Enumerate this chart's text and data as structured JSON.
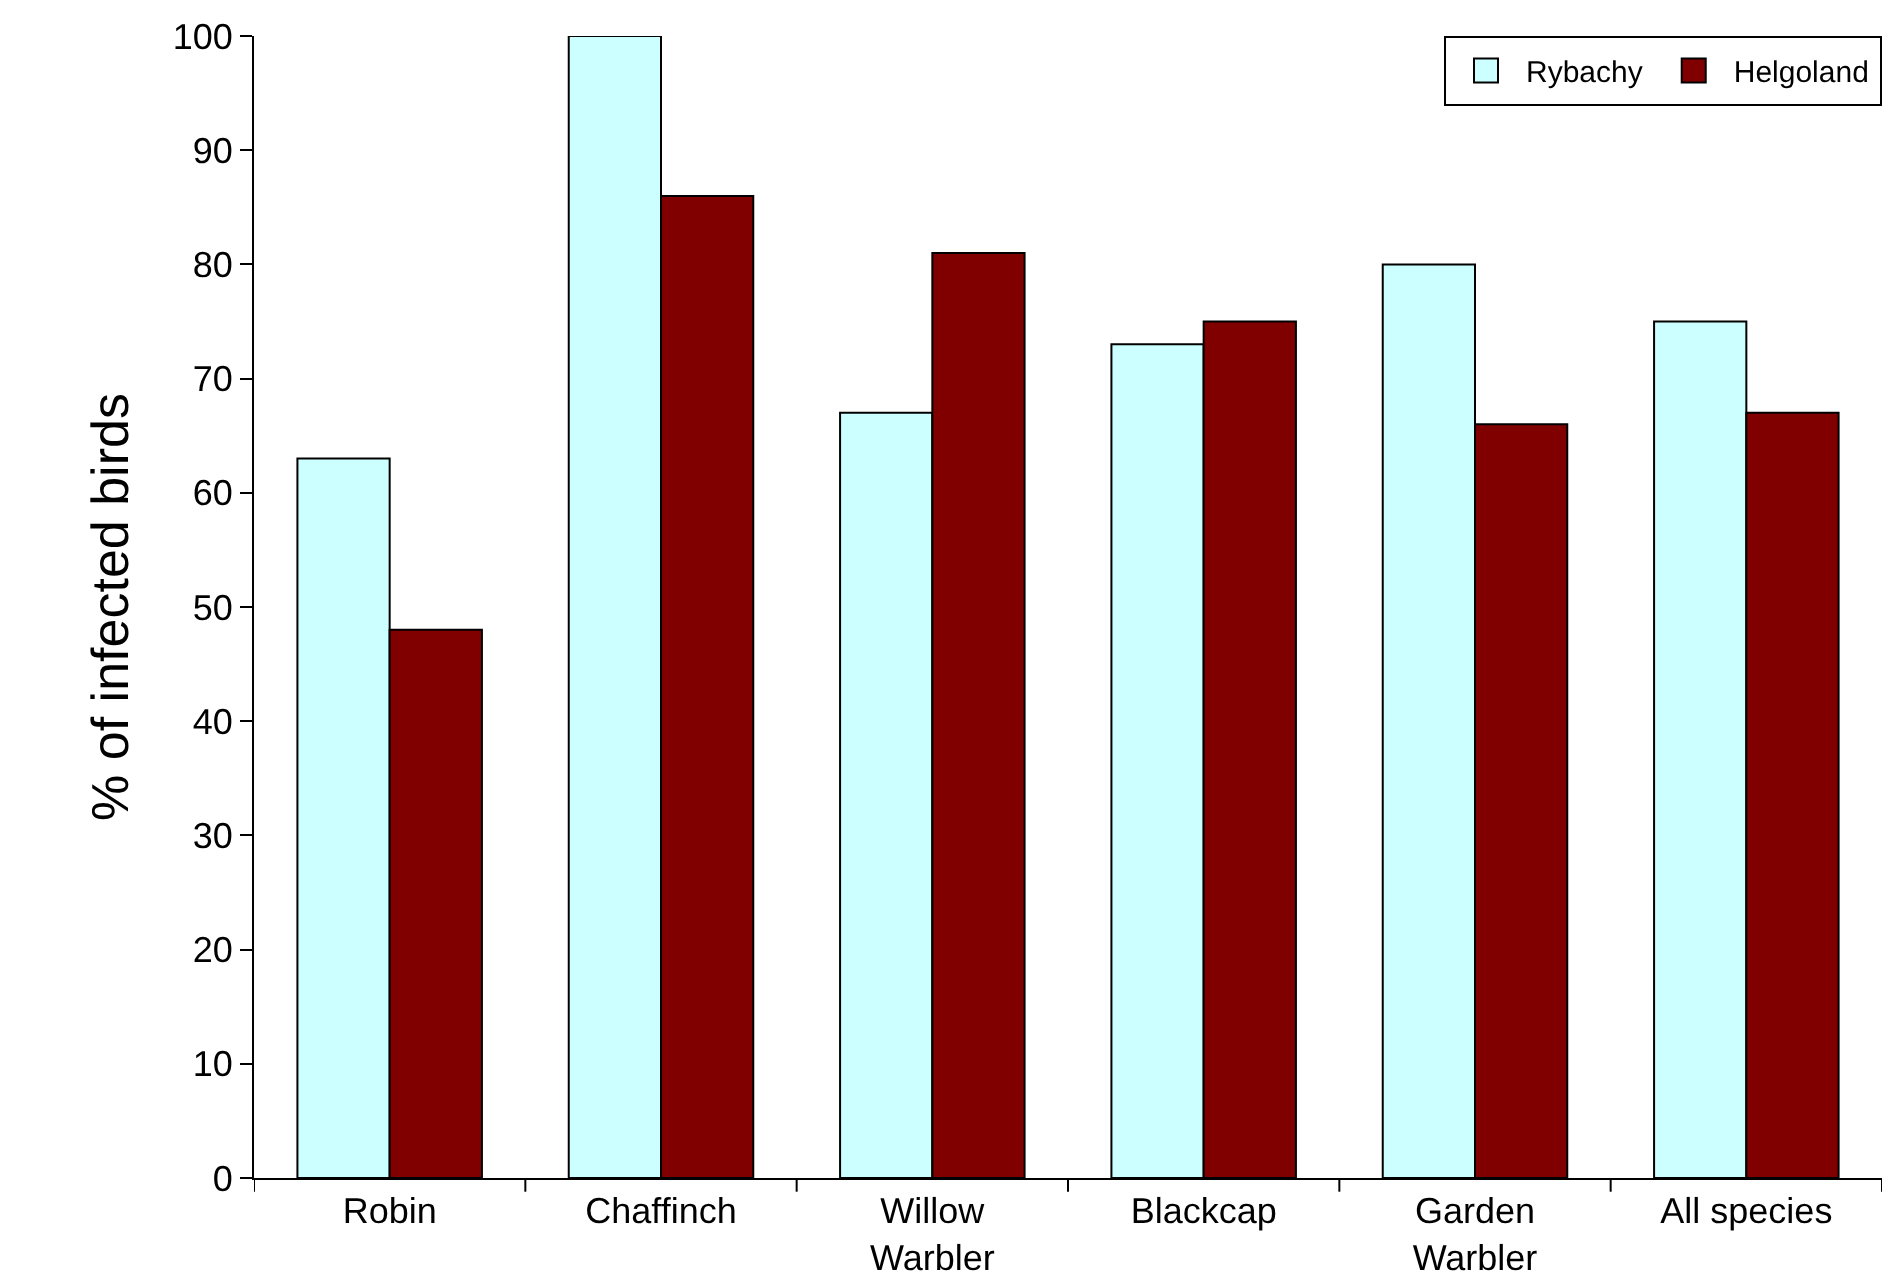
{
  "chart_data": {
    "type": "bar",
    "ylabel": "% of infected birds",
    "categories": [
      "Robin",
      "Chaffinch",
      "Willow Warbler",
      "Blackcap",
      "Garden Warbler",
      "All species"
    ],
    "series": [
      {
        "name": "Rybachy",
        "color": "#ccffff",
        "values": [
          63,
          100,
          67,
          73,
          80,
          75
        ]
      },
      {
        "name": "Helgoland",
        "color": "#800000",
        "values": [
          48,
          86,
          81,
          75,
          66,
          67
        ]
      }
    ],
    "ylim": [
      0,
      100
    ],
    "yticks": [
      0,
      10,
      20,
      30,
      40,
      50,
      60,
      70,
      80,
      90,
      100
    ],
    "grid": false,
    "legend": "top right"
  }
}
